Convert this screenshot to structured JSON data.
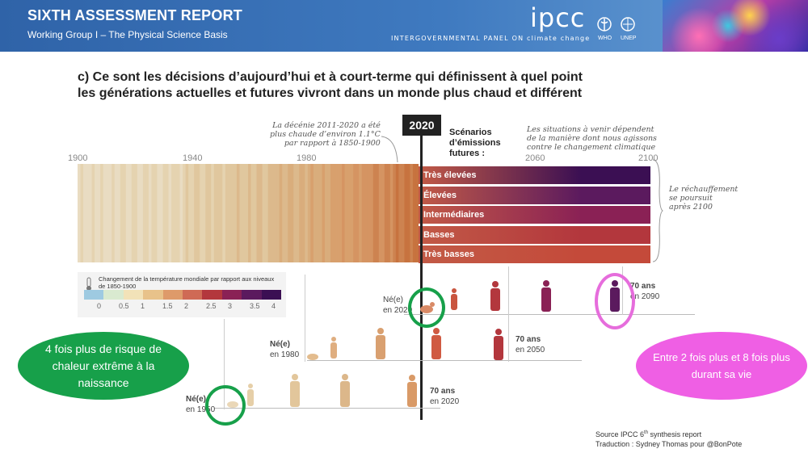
{
  "header": {
    "title": "SIXTH ASSESSMENT REPORT",
    "subtitle": "Working Group I – The Physical Science Basis",
    "logo": "ipcc",
    "logo_tagline": "INTERGOVERNMENTAL PANEL ON climate change",
    "partner_who": "WHO",
    "partner_unep": "UNEP"
  },
  "heading": {
    "line1": "c) Ce sont les décisions d’aujourd’hui et à court-terme qui définissent à quel point",
    "line2": "les générations actuelles et futures vivront dans un monde plus chaud et différent"
  },
  "notes": {
    "decade": [
      "La décénie 2011-2020 a été",
      "plus chaude d’environ 1.1°C",
      "par rapport à 1850-1900"
    ],
    "situations": [
      "Les situations à venir dépendent",
      "de la manière dont nous agissons",
      "contre le changement climatique"
    ],
    "after2100": [
      "Le réchauffement",
      "se poursuit",
      "après 2100"
    ]
  },
  "timeline": {
    "years": [
      "1900",
      "1940",
      "1980",
      "2060",
      "2100"
    ],
    "marker": "2020",
    "scenario_heading": [
      "Scénarios",
      "d’émissions",
      "futures :"
    ]
  },
  "chart_data": {
    "type": "heatmap",
    "title": "",
    "x_range": [
      1900,
      2100
    ],
    "legend_title": "Changement de la température mondiale par rapport aux niveaux de 1850-1900",
    "legend_ticks": [
      "0",
      "0.5",
      "1",
      "1.5",
      "2",
      "2.5",
      "3",
      "3.5",
      "4"
    ],
    "legend_range": [
      -0.5,
      4
    ],
    "scenarios": [
      {
        "name": "Très élevées",
        "color": "#3b0f53"
      },
      {
        "name": "Élevées",
        "color": "#5b1a5e"
      },
      {
        "name": "Intermédiaires",
        "color": "#8a2155"
      },
      {
        "name": "Basses",
        "color": "#b3373d"
      },
      {
        "name": "Très basses",
        "color": "#c44a3a"
      }
    ]
  },
  "legend": {
    "title": "Changement de la température mondiale par rapport aux niveaux de 1850-1900",
    "ticks": [
      "0",
      "0.5",
      "1",
      "1.5",
      "2",
      "2.5",
      "3",
      "3.5",
      "4"
    ],
    "colors": [
      "#9ecae1",
      "#d9ead0",
      "#f2e2b8",
      "#e8c28a",
      "#de9a6a",
      "#cf6a55",
      "#b3373d",
      "#8a2155",
      "#5b1a5e",
      "#3b0f53"
    ]
  },
  "generations": [
    {
      "born": "Né(e)",
      "born_year": "en 2020",
      "age": "70 ans",
      "end_year": "en 2090"
    },
    {
      "born": "Né(e)",
      "born_year": "en 1980",
      "age": "70 ans",
      "end_year": "en 2050"
    },
    {
      "born": "Né(e)",
      "born_year": "en 1950",
      "age": "70 ans",
      "end_year": "en 2020"
    }
  ],
  "callouts": {
    "green": "4 fois plus de risque de chaleur extrême à la naissance",
    "pink": "Entre 2 fois plus et 8 fois plus durant sa vie"
  },
  "source": {
    "line1_pre": "Source IPCC 6",
    "line1_sup": "th",
    "line1_post": " synthesis report",
    "line2": "Traduction : Sydney Thomas pour @BonPote"
  }
}
